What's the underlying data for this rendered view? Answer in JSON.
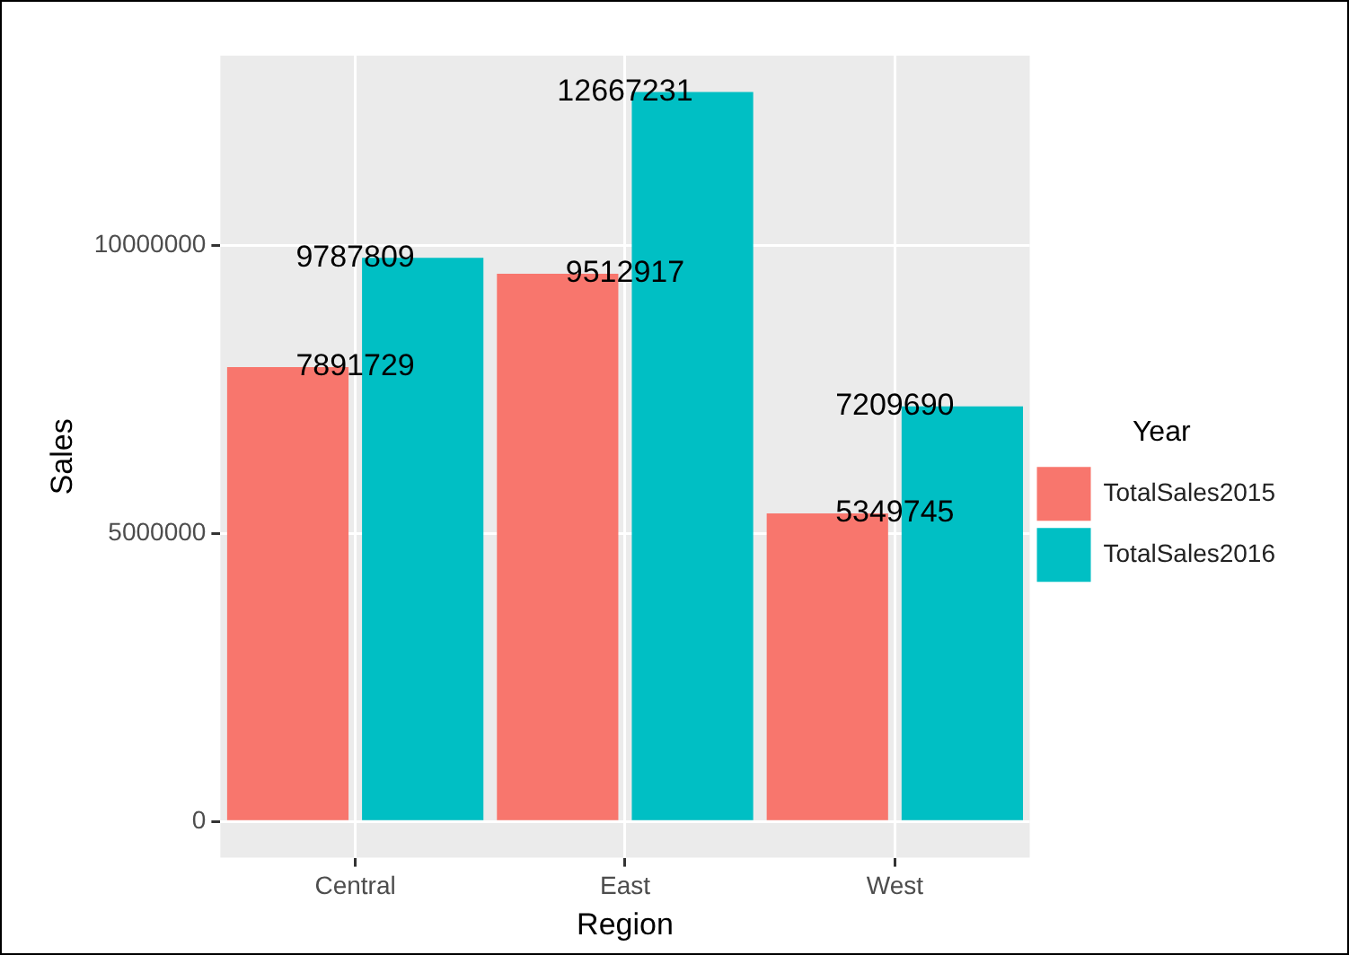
{
  "chart_data": {
    "type": "bar",
    "xlabel": "Region",
    "ylabel": "Sales",
    "legend_title": "Year",
    "categories": [
      "Central",
      "East",
      "West"
    ],
    "series": [
      {
        "name": "TotalSales2015",
        "color": "#f8766d",
        "values": [
          7891729,
          9512917,
          5349745
        ]
      },
      {
        "name": "TotalSales2016",
        "color": "#00bfc4",
        "values": [
          9787809,
          12667231,
          7209690
        ]
      }
    ],
    "ylim": [
      -630000,
      13300000
    ],
    "yticks": [
      0,
      5000000,
      10000000
    ],
    "grid": true,
    "legend": "right",
    "data_labels": true
  }
}
